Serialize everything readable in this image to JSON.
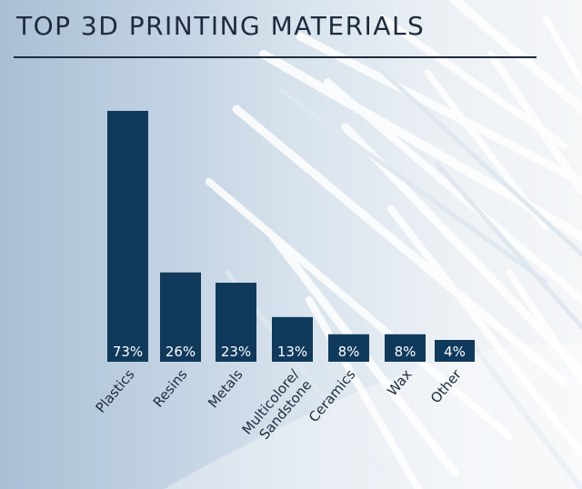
{
  "title": "TOP 3D PRINTING MATERIALS",
  "colors": {
    "bar": "#0f3a5c",
    "label": "#ffffff",
    "axis_text": "#1d2b3c"
  },
  "chart_data": {
    "type": "bar",
    "categories": [
      "Plastics",
      "Resins",
      "Metals",
      "Multicolore/\nSandstone",
      "Ceramics",
      "Wax",
      "Other"
    ],
    "values": [
      73,
      26,
      23,
      13,
      8,
      8,
      4
    ],
    "value_labels": [
      "73%",
      "26%",
      "23%",
      "13%",
      "8%",
      "8%",
      "4%"
    ],
    "title": "TOP 3D PRINTING MATERIALS",
    "xlabel": "",
    "ylabel": "",
    "ylim": [
      0,
      73
    ],
    "grid": false
  }
}
